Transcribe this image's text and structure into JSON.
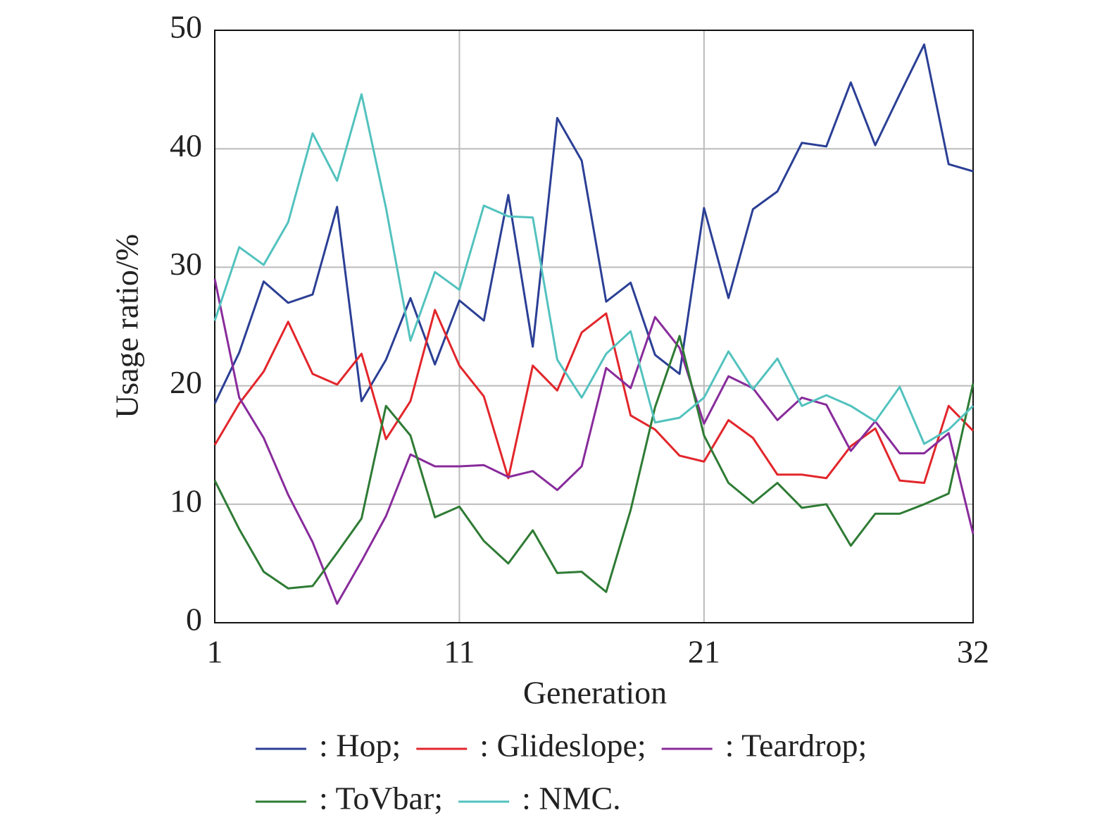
{
  "chart_data": {
    "type": "line",
    "x_label": "Generation",
    "y_label": "Usage ratio/%",
    "x": [
      1,
      2,
      3,
      4,
      5,
      6,
      7,
      8,
      9,
      10,
      11,
      12,
      13,
      14,
      15,
      16,
      17,
      18,
      19,
      20,
      21,
      22,
      23,
      24,
      25,
      26,
      27,
      28,
      29,
      30,
      31,
      32
    ],
    "xlim": [
      1,
      32
    ],
    "xticks": [
      1,
      11,
      21,
      32
    ],
    "ylim": [
      0,
      50
    ],
    "yticks": [
      0,
      10,
      20,
      30,
      40,
      50
    ],
    "grid": true,
    "legend": "bottom",
    "series": [
      {
        "name": ": Hop;",
        "color": "#2b3f95",
        "values": [
          18.5,
          22.8,
          28.8,
          27,
          27.7,
          35.1,
          18.7,
          22.2,
          27.4,
          21.8,
          27.2,
          25.5,
          36.1,
          23.3,
          42.6,
          39,
          27.1,
          28.7,
          22.6,
          21,
          35,
          27.4,
          34.9,
          36.4,
          40.5,
          40.2,
          45.6,
          40.3,
          44.6,
          48.8,
          38.7,
          38.1
        ]
      },
      {
        "name": ": Glideslope;",
        "color": "#e2262b",
        "values": [
          15,
          18.5,
          21.2,
          25.4,
          21,
          20.1,
          22.7,
          15.5,
          18.7,
          26.4,
          21.7,
          19.1,
          12.2,
          21.7,
          19.6,
          24.5,
          26.1,
          17.5,
          16.3,
          14.1,
          13.6,
          17.1,
          15.6,
          12.5,
          12.5,
          12.2,
          14.9,
          16.4,
          12,
          11.8,
          18.3,
          16.2
        ]
      },
      {
        "name": ": Teardrop;",
        "color": "#882b9b",
        "values": [
          29,
          19,
          15.6,
          10.8,
          6.8,
          1.6,
          5.2,
          9,
          14.2,
          13.2,
          13.2,
          13.3,
          12.3,
          12.8,
          11.2,
          13.2,
          21.5,
          19.8,
          25.8,
          23.2,
          16.8,
          20.8,
          19.8,
          17.1,
          19,
          18.4,
          14.5,
          17,
          14.3,
          14.3,
          16,
          7.5
        ]
      },
      {
        "name": ": ToVbar;",
        "color": "#2e7b34",
        "values": [
          12,
          7.9,
          4.3,
          2.9,
          3.1,
          5.9,
          8.8,
          18.3,
          15.8,
          8.9,
          9.8,
          6.9,
          5,
          7.8,
          4.2,
          4.3,
          2.6,
          9.5,
          18.2,
          24.2,
          15.8,
          11.8,
          10.1,
          11.8,
          9.7,
          10,
          6.5,
          9.2,
          9.2,
          10,
          10.9,
          20.2
        ]
      },
      {
        "name": ": NMC.",
        "color": "#52c2be",
        "values": [
          25.5,
          31.7,
          30.2,
          33.8,
          41.3,
          37.3,
          44.6,
          35,
          23.8,
          29.6,
          28.1,
          35.2,
          34.3,
          34.2,
          22.2,
          19,
          22.7,
          24.6,
          16.9,
          17.3,
          19,
          22.9,
          19.7,
          22.3,
          18.3,
          19.2,
          18.3,
          17,
          19.9,
          15.1,
          16.3,
          18.3
        ]
      }
    ]
  }
}
